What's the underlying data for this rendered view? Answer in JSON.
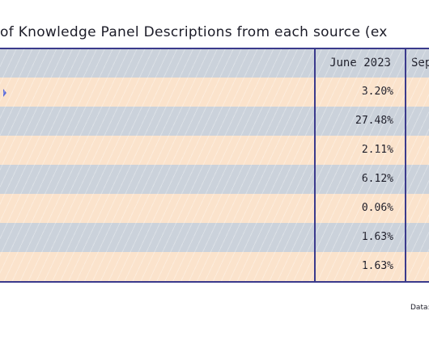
{
  "title": "of Knowledge Panel Descriptions from each source (ex",
  "columns": {
    "june": "June 2023",
    "sep": "Sep"
  },
  "rows": [
    {
      "june": "3.20%"
    },
    {
      "june": "27.48%"
    },
    {
      "june": "2.11%"
    },
    {
      "june": "6.12%"
    },
    {
      "june": "0.06%"
    },
    {
      "june": "1.63%"
    },
    {
      "june": "1.63%"
    }
  ],
  "footer": "Data:",
  "colors": {
    "row_blue": "#cbd2db",
    "row_peach": "#fbe3cc",
    "grid_line": "#3a3a8c",
    "marker": "#5c6bd8"
  }
}
